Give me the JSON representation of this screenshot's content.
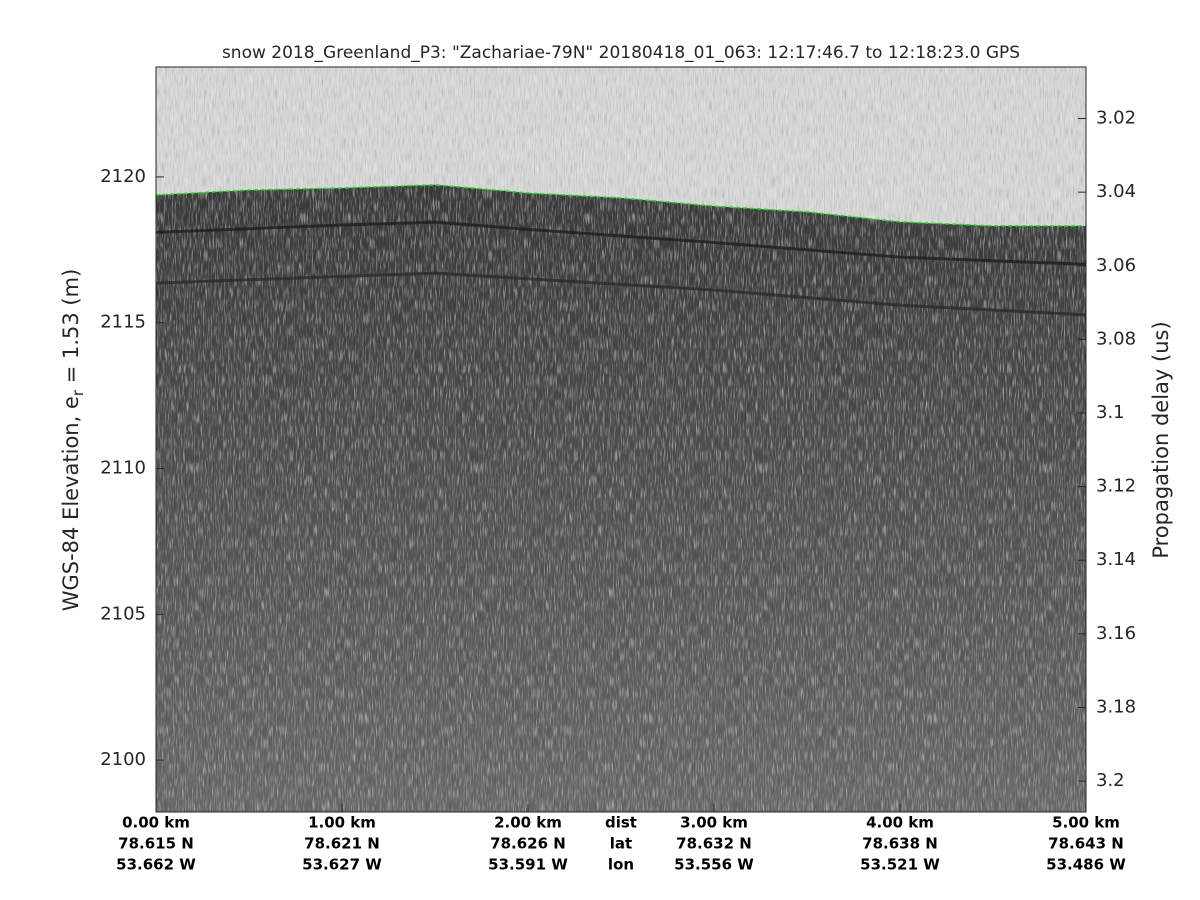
{
  "chart_data": {
    "type": "echogram",
    "title": "snow 2018_Greenland_P3: \"Zachariae-79N\"  20180418_01_063: 12:17:46.7 to 12:18:23.0 GPS",
    "ylabel": {
      "prefix": "WGS-84 Elevation, e",
      "sub": "r",
      "suffix": " = 1.53 (m)"
    },
    "y2label": "Propagation delay (us)",
    "xlim": [
      0,
      5
    ],
    "xticks": [
      {
        "value": 0,
        "label": "0.00 km"
      },
      {
        "value": 1,
        "label": "1.00 km"
      },
      {
        "value": 2,
        "label": "2.00 km"
      },
      {
        "value": 3,
        "label": "3.00 km"
      },
      {
        "value": 4,
        "label": "4.00 km"
      },
      {
        "value": 5,
        "label": "5.00 km"
      }
    ],
    "lat_labels": [
      "78.615 N",
      "78.621 N",
      "78.626 N",
      "78.632 N",
      "78.638 N",
      "78.643 N"
    ],
    "lon_labels": [
      "53.662 W",
      "53.627 W",
      "53.591 W",
      "53.556 W",
      "53.521 W",
      "53.486 W"
    ],
    "x_row_labels": [
      "dist",
      "lat",
      "lon"
    ],
    "ylim": [
      2098.22,
      2123.77
    ],
    "yticks": [
      2100,
      2105,
      2110,
      2115,
      2120
    ],
    "y2lim": [
      3.2084,
      3.006
    ],
    "y2ticks": [
      3.02,
      3.04,
      3.06,
      3.08,
      3.1,
      3.12,
      3.14,
      3.16,
      3.18,
      3.2
    ],
    "surface": {
      "color": "#22dd22",
      "x": [
        0,
        0.5,
        1,
        1.5,
        2,
        2.5,
        3,
        3.5,
        4,
        4.5,
        5
      ],
      "values": [
        2119.38,
        2119.55,
        2119.62,
        2119.73,
        2119.45,
        2119.28,
        2119.0,
        2118.8,
        2118.46,
        2118.32,
        2118.32
      ]
    },
    "layers": [
      {
        "color": "#1e1e1e",
        "x": [
          0,
          1,
          1.5,
          2,
          3,
          4,
          5
        ],
        "values": [
          2118.1,
          2118.35,
          2118.45,
          2118.2,
          2117.75,
          2117.25,
          2117.0
        ]
      },
      {
        "color": "#2a2a2a",
        "x": [
          0,
          1.5,
          3,
          4,
          5
        ],
        "values": [
          2116.36,
          2116.7,
          2116.12,
          2115.6,
          2115.27
        ]
      }
    ]
  }
}
